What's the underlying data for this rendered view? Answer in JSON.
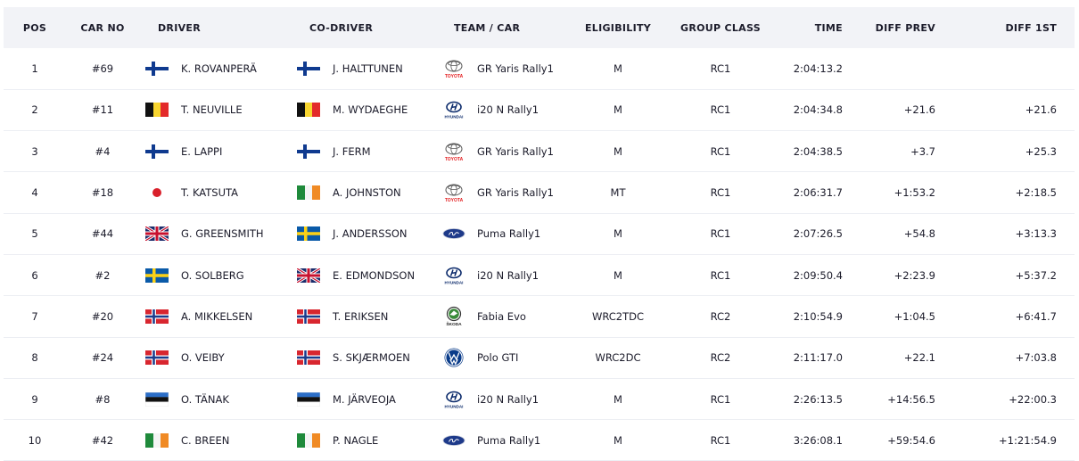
{
  "headers": {
    "pos": "POS",
    "car_no": "CAR NO",
    "driver": "DRIVER",
    "co_driver": "CO-DRIVER",
    "team_car": "TEAM / CAR",
    "eligibility": "ELIGIBILITY",
    "group_class": "GROUP CLASS",
    "time": "TIME",
    "diff_prev": "DIFF PREV",
    "diff_first": "DIFF 1ST"
  },
  "rows": [
    {
      "pos": "1",
      "car_no": "#69",
      "driver": "K. ROVANPERÄ",
      "driver_flag": "finland-flag-icon",
      "co_driver": "J. HALTTUNEN",
      "co_flag": "finland-flag-icon",
      "team_logo": "toyota-logo-icon",
      "car": "GR Yaris Rally1",
      "eligibility": "M",
      "group_class": "RC1",
      "time": "2:04:13.2",
      "diff_prev": "",
      "diff_first": ""
    },
    {
      "pos": "2",
      "car_no": "#11",
      "driver": "T. NEUVILLE",
      "driver_flag": "belgium-flag-icon",
      "co_driver": "M. WYDAEGHE",
      "co_flag": "belgium-flag-icon",
      "team_logo": "hyundai-logo-icon",
      "car": "i20 N Rally1",
      "eligibility": "M",
      "group_class": "RC1",
      "time": "2:04:34.8",
      "diff_prev": "+21.6",
      "diff_first": "+21.6"
    },
    {
      "pos": "3",
      "car_no": "#4",
      "driver": "E. LAPPI",
      "driver_flag": "finland-flag-icon",
      "co_driver": "J. FERM",
      "co_flag": "finland-flag-icon",
      "team_logo": "toyota-logo-icon",
      "car": "GR Yaris Rally1",
      "eligibility": "M",
      "group_class": "RC1",
      "time": "2:04:38.5",
      "diff_prev": "+3.7",
      "diff_first": "+25.3"
    },
    {
      "pos": "4",
      "car_no": "#18",
      "driver": "T. KATSUTA",
      "driver_flag": "japan-flag-icon",
      "co_driver": "A. JOHNSTON",
      "co_flag": "ireland-flag-icon",
      "team_logo": "toyota-logo-icon",
      "car": "GR Yaris Rally1",
      "eligibility": "MT",
      "group_class": "RC1",
      "time": "2:06:31.7",
      "diff_prev": "+1:53.2",
      "diff_first": "+2:18.5"
    },
    {
      "pos": "5",
      "car_no": "#44",
      "driver": "G. GREENSMITH",
      "driver_flag": "uk-flag-icon",
      "co_driver": "J. ANDERSSON",
      "co_flag": "sweden-flag-icon",
      "team_logo": "ford-logo-icon",
      "car": "Puma Rally1",
      "eligibility": "M",
      "group_class": "RC1",
      "time": "2:07:26.5",
      "diff_prev": "+54.8",
      "diff_first": "+3:13.3"
    },
    {
      "pos": "6",
      "car_no": "#2",
      "driver": "O. SOLBERG",
      "driver_flag": "sweden-flag-icon",
      "co_driver": "E. EDMONDSON",
      "co_flag": "uk-flag-icon",
      "team_logo": "hyundai-logo-icon",
      "car": "i20 N Rally1",
      "eligibility": "M",
      "group_class": "RC1",
      "time": "2:09:50.4",
      "diff_prev": "+2:23.9",
      "diff_first": "+5:37.2"
    },
    {
      "pos": "7",
      "car_no": "#20",
      "driver": "A. MIKKELSEN",
      "driver_flag": "norway-flag-icon",
      "co_driver": "T. ERIKSEN",
      "co_flag": "norway-flag-icon",
      "team_logo": "skoda-logo-icon",
      "car": "Fabia Evo",
      "eligibility": "WRC2TDC",
      "group_class": "RC2",
      "time": "2:10:54.9",
      "diff_prev": "+1:04.5",
      "diff_first": "+6:41.7"
    },
    {
      "pos": "8",
      "car_no": "#24",
      "driver": "O. VEIBY",
      "driver_flag": "norway-flag-icon",
      "co_driver": "S. SKJÆRMOEN",
      "co_flag": "norway-flag-icon",
      "team_logo": "vw-logo-icon",
      "car": "Polo GTI",
      "eligibility": "WRC2DC",
      "group_class": "RC2",
      "time": "2:11:17.0",
      "diff_prev": "+22.1",
      "diff_first": "+7:03.8"
    },
    {
      "pos": "9",
      "car_no": "#8",
      "driver": "O. TÄNAK",
      "driver_flag": "estonia-flag-icon",
      "co_driver": "M. JÄRVEOJA",
      "co_flag": "estonia-flag-icon",
      "team_logo": "hyundai-logo-icon",
      "car": "i20 N Rally1",
      "eligibility": "M",
      "group_class": "RC1",
      "time": "2:26:13.5",
      "diff_prev": "+14:56.5",
      "diff_first": "+22:00.3"
    },
    {
      "pos": "10",
      "car_no": "#42",
      "driver": "C. BREEN",
      "driver_flag": "ireland-flag-icon",
      "co_driver": "P. NAGLE",
      "co_flag": "ireland-flag-icon",
      "team_logo": "ford-logo-icon",
      "car": "Puma Rally1",
      "eligibility": "M",
      "group_class": "RC1",
      "time": "3:26:08.1",
      "diff_prev": "+59:54.6",
      "diff_first": "+1:21:54.9"
    }
  ],
  "logo_text": {
    "toyota": "TOYOTA",
    "hyundai": "HYUNDAI",
    "skoda": "ŠKODA"
  },
  "colors": {
    "header_bg": "#f2f3f7",
    "row_border": "#eceef3",
    "text": "#1c1c2b",
    "toyota_red": "#e3191b",
    "hyundai_blue": "#0b2a6b",
    "ford_blue": "#1e3a8a",
    "skoda_green": "#3a8b3a",
    "vw_blue": "#0a3c8a"
  }
}
